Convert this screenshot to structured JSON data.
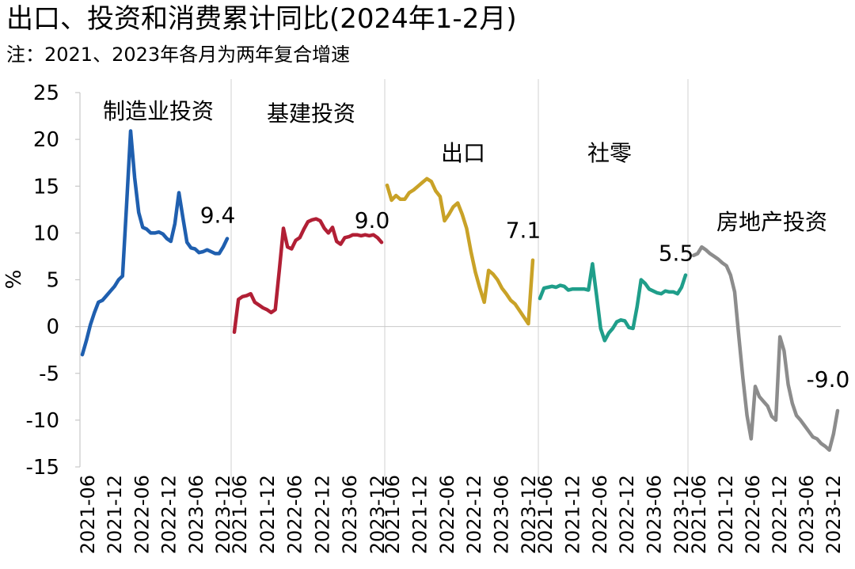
{
  "title": "出口、投资和消费累计同比(2024年1-2月)",
  "subtitle": "注：2021、2023年各月为两年复合增速",
  "chart_data": {
    "type": "line",
    "title": "出口、投资和消费累计同比(2024年1-2月)",
    "subtitle": "注：2021、2023年各月为两年复合增速",
    "ylabel": "%",
    "ylim": [
      -15,
      25
    ],
    "yticks": [
      25,
      20,
      15,
      10,
      5,
      0,
      -5,
      -10,
      -15
    ],
    "ytick_labels": [
      "25",
      "20",
      "15",
      "10",
      "5",
      "0",
      "-5",
      "-10",
      "-15"
    ],
    "grid": false,
    "panel_xtick_labels": [
      "2021-06",
      "2021-12",
      "2022-06",
      "2022-12",
      "2023-06",
      "2023-12"
    ],
    "series": [
      {
        "name": "制造业投资",
        "color": "#1F5FAF",
        "end_label": "9.4",
        "values": [
          -3.0,
          -1.5,
          0.2,
          1.5,
          2.6,
          2.8,
          3.3,
          3.8,
          4.3,
          5.0,
          5.4,
          13.0,
          20.9,
          15.9,
          12.2,
          10.6,
          10.4,
          10.0,
          10.0,
          10.1,
          9.9,
          9.4,
          9.1,
          11.0,
          14.3,
          11.6,
          9.0,
          8.4,
          8.3,
          7.9,
          8.0,
          8.2,
          8.0,
          7.8,
          7.8,
          8.5,
          9.4
        ]
      },
      {
        "name": "基建投资",
        "color": "#B11F35",
        "end_label": "9.0",
        "values": [
          -0.6,
          2.9,
          3.2,
          3.3,
          3.5,
          2.6,
          2.3,
          2.0,
          1.8,
          1.5,
          1.8,
          6.0,
          10.5,
          8.5,
          8.3,
          9.2,
          9.5,
          10.4,
          11.2,
          11.4,
          11.5,
          11.3,
          10.5,
          10.0,
          10.6,
          9.1,
          8.8,
          9.5,
          9.6,
          9.8,
          9.8,
          9.7,
          9.8,
          9.7,
          9.8,
          9.5,
          9.0
        ]
      },
      {
        "name": "出口",
        "color": "#C9A227",
        "end_label": "7.1",
        "values": [
          15.1,
          13.5,
          14.0,
          13.6,
          13.6,
          14.3,
          14.6,
          15.0,
          15.4,
          15.8,
          15.5,
          14.5,
          13.9,
          11.3,
          12.0,
          12.8,
          13.2,
          12.0,
          10.5,
          8.0,
          5.8,
          4.1,
          2.6,
          6.0,
          5.6,
          5.0,
          4.1,
          3.5,
          2.8,
          2.4,
          1.7,
          1.0,
          0.3,
          7.1
        ]
      },
      {
        "name": "社零",
        "color": "#1F9E8A",
        "end_label": "5.5",
        "values": [
          3.0,
          4.1,
          4.2,
          4.3,
          4.2,
          4.4,
          4.3,
          3.9,
          4.0,
          4.0,
          4.0,
          4.0,
          3.9,
          6.7,
          3.3,
          -0.2,
          -1.5,
          -0.7,
          -0.2,
          0.5,
          0.7,
          0.6,
          -0.1,
          -0.2,
          2.1,
          5.0,
          4.6,
          4.0,
          3.8,
          3.6,
          3.5,
          3.8,
          3.7,
          3.7,
          3.5,
          4.2,
          5.5
        ]
      },
      {
        "name": "房地产投资",
        "color": "#8C8C8C",
        "end_label": "-9.0",
        "values": [
          7.6,
          7.8,
          8.5,
          8.2,
          7.8,
          7.5,
          7.2,
          6.8,
          6.5,
          5.5,
          3.7,
          -1.0,
          -5.5,
          -9.5,
          -12.0,
          -6.4,
          -7.5,
          -8.0,
          -8.5,
          -9.6,
          -10.0,
          -1.1,
          -2.6,
          -6.2,
          -8.2,
          -9.5,
          -10.0,
          -10.6,
          -11.2,
          -11.8,
          -12.0,
          -12.5,
          -12.8,
          -13.2,
          -11.5,
          -9.0
        ]
      }
    ]
  }
}
